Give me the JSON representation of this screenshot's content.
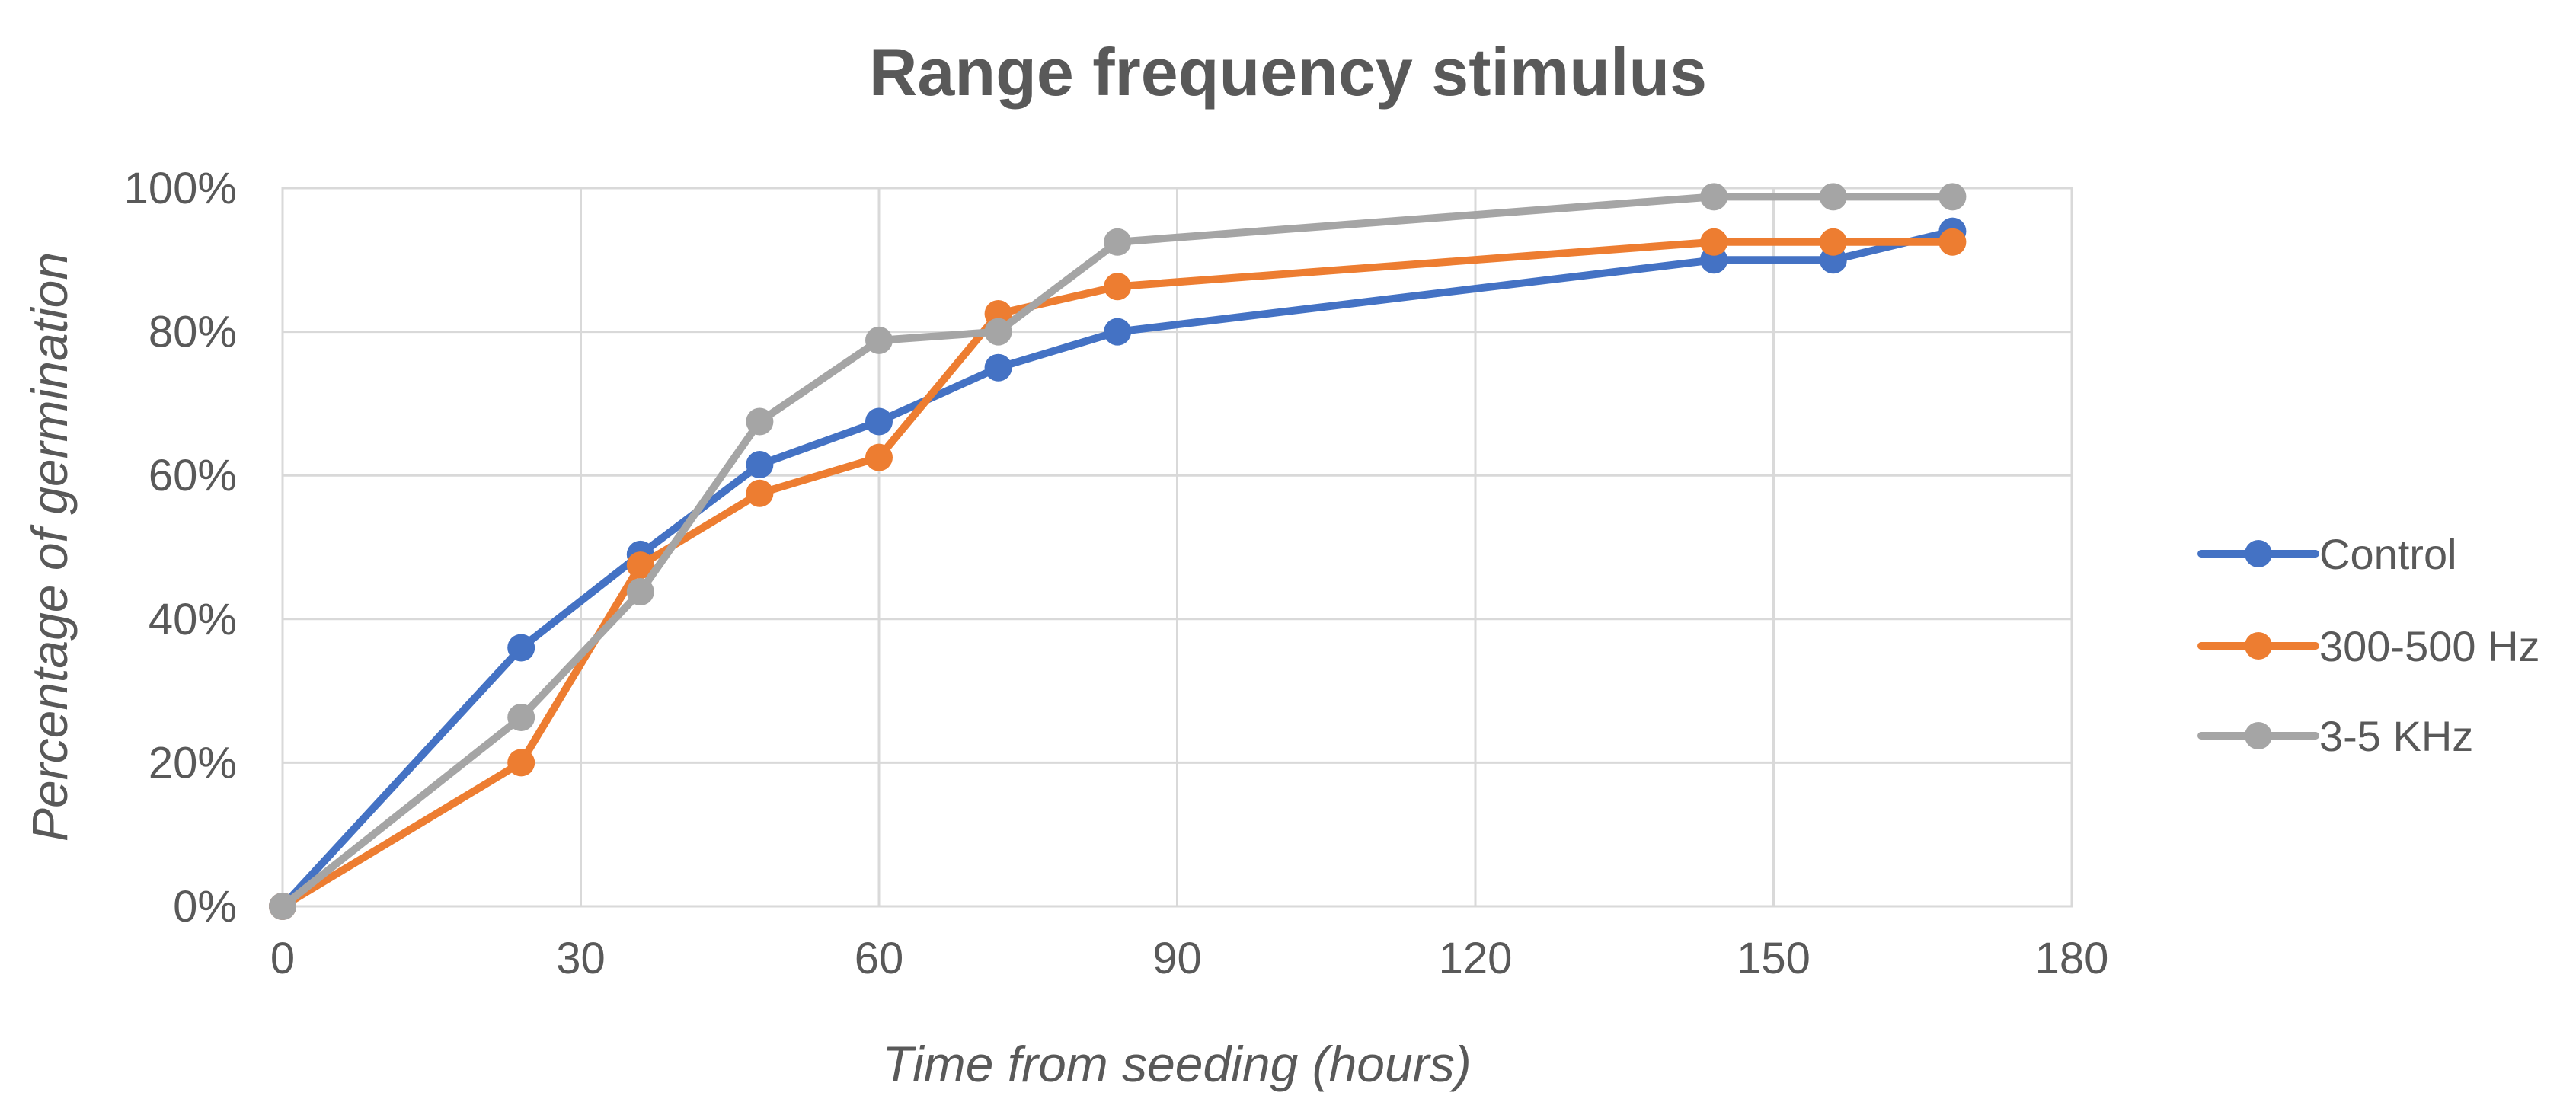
{
  "chart_data": {
    "type": "line",
    "title": "Range frequency stimulus",
    "xlabel": "Time from seeding (hours)",
    "ylabel": "Percentage of germination",
    "xlim": [
      0,
      180
    ],
    "ylim": [
      0,
      100
    ],
    "x_ticks": [
      "0",
      "30",
      "60",
      "90",
      "120",
      "150",
      "180"
    ],
    "y_ticks": [
      "0%",
      "20%",
      "40%",
      "60%",
      "80%",
      "100%"
    ],
    "x": [
      0,
      24,
      36,
      48,
      60,
      72,
      84,
      144,
      156,
      168
    ],
    "series": [
      {
        "name": "Control",
        "color": "#4472c4",
        "values": [
          0,
          36,
          49,
          61.5,
          67.5,
          75,
          80,
          90,
          90,
          94
        ]
      },
      {
        "name": "300-500 Hz",
        "color": "#ed7d31",
        "values": [
          0,
          20,
          47.5,
          57.5,
          62.5,
          82.5,
          86.3,
          92.5,
          92.5,
          92.5
        ]
      },
      {
        "name": "3-5 KHz",
        "color": "#a5a5a5",
        "values": [
          0,
          26.3,
          43.8,
          67.5,
          78.8,
          80,
          92.5,
          98.8,
          98.8,
          98.8
        ]
      }
    ],
    "grid": true,
    "legend_position": "right"
  }
}
